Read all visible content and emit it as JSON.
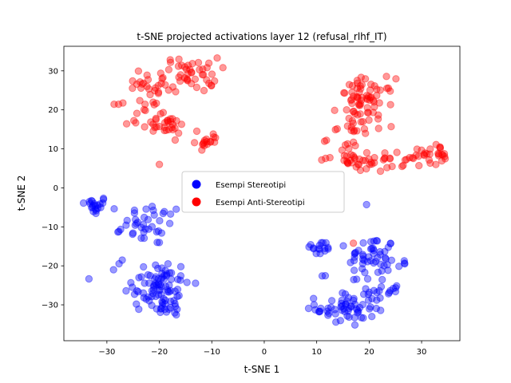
{
  "chart_data": {
    "type": "scatter",
    "title": "t-SNE projected activations layer 12 (refusal_rlhf_IT)",
    "xlabel": "t-SNE 1",
    "ylabel": "t-SNE 2",
    "xlim": [
      -38.2,
      37.3
    ],
    "ylim": [
      -39.2,
      36.3
    ],
    "xticks": [
      -30,
      -20,
      -10,
      0,
      10,
      20,
      30
    ],
    "yticks": [
      -30,
      -20,
      -10,
      0,
      10,
      20,
      30
    ],
    "grid": false,
    "legend_position": "center",
    "series": [
      {
        "name": "Esempi Stereotipi",
        "color": "#0000ff",
        "clusters": [
          {
            "cx": -32.5,
            "cy": -4.5,
            "sx": 1.4,
            "sy": 1.2,
            "n": 22
          },
          {
            "cx": -21,
            "cy": -9.5,
            "sx": 2.8,
            "sy": 2.8,
            "n": 35
          },
          {
            "cx": -20.5,
            "cy": -25,
            "sx": 3.2,
            "sy": 3.5,
            "n": 80
          },
          {
            "cx": -27.5,
            "cy": -11.5,
            "sx": 0.4,
            "sy": 0.8,
            "n": 3
          },
          {
            "cx": -27.5,
            "cy": -19,
            "sx": 0.5,
            "sy": 0.4,
            "n": 2
          },
          {
            "cx": -18,
            "cy": -30.5,
            "sx": 1.6,
            "sy": 1.2,
            "n": 15
          },
          {
            "cx": 10.5,
            "cy": -15.5,
            "sx": 1.2,
            "sy": 1.0,
            "n": 16
          },
          {
            "cx": 11.5,
            "cy": -22.5,
            "sx": 0.4,
            "sy": 0.2,
            "n": 2
          },
          {
            "cx": 20.5,
            "cy": -17.5,
            "sx": 2.2,
            "sy": 2.6,
            "n": 45
          },
          {
            "cx": 21.5,
            "cy": -26,
            "sx": 2.2,
            "sy": 2.6,
            "n": 25
          },
          {
            "cx": 15.5,
            "cy": -31,
            "sx": 2.8,
            "sy": 2.2,
            "n": 55
          },
          {
            "cx": 26.5,
            "cy": -19.5,
            "sx": 0.8,
            "sy": 0.4,
            "n": 4
          },
          {
            "cx": 19.5,
            "cy": -4.3,
            "sx": 0.1,
            "sy": 0.1,
            "n": 1
          }
        ]
      },
      {
        "name": "Esempi Anti-Stereotipi",
        "color": "#ff0000",
        "clusters": [
          {
            "cx": -22,
            "cy": 27,
            "sx": 2.3,
            "sy": 2.0,
            "n": 22
          },
          {
            "cx": -14,
            "cy": 29,
            "sx": 2.6,
            "sy": 2.2,
            "n": 45
          },
          {
            "cx": -22,
            "cy": 20,
            "sx": 1.2,
            "sy": 1.2,
            "n": 8
          },
          {
            "cx": -19,
            "cy": 16,
            "sx": 2.2,
            "sy": 1.3,
            "n": 30
          },
          {
            "cx": -11,
            "cy": 12,
            "sx": 1.1,
            "sy": 1.0,
            "n": 16
          },
          {
            "cx": -27.5,
            "cy": 21.5,
            "sx": 0.5,
            "sy": 0.2,
            "n": 3
          },
          {
            "cx": -25,
            "cy": 16.5,
            "sx": 0.6,
            "sy": 0.4,
            "n": 3
          },
          {
            "cx": -20,
            "cy": 6,
            "sx": 0.1,
            "sy": 0.1,
            "n": 1
          },
          {
            "cx": 19.5,
            "cy": 22,
            "sx": 2.6,
            "sy": 3.0,
            "n": 70
          },
          {
            "cx": 17,
            "cy": 15,
            "sx": 2.5,
            "sy": 1.2,
            "n": 12
          },
          {
            "cx": 15.5,
            "cy": 9,
            "sx": 2.2,
            "sy": 1.8,
            "n": 20
          },
          {
            "cx": 21,
            "cy": 6.5,
            "sx": 2.8,
            "sy": 1.2,
            "n": 30
          },
          {
            "cx": 27.5,
            "cy": 8.5,
            "sx": 1.5,
            "sy": 1.6,
            "n": 10
          },
          {
            "cx": 32.5,
            "cy": 8.5,
            "sx": 1.3,
            "sy": 1.3,
            "n": 22
          },
          {
            "cx": 17,
            "cy": -14.2,
            "sx": 0.1,
            "sy": 0.1,
            "n": 1
          }
        ]
      }
    ]
  }
}
